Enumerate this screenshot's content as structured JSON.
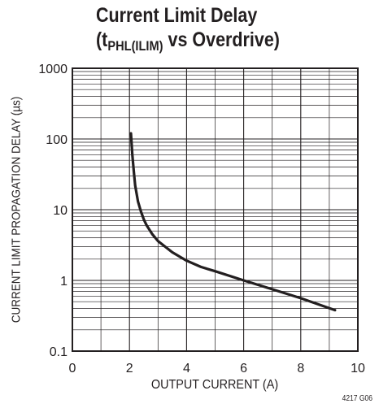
{
  "title": {
    "line1": "Current Limit Delay",
    "line2_open": "(t",
    "line2_sub": "PHL(ILIM)",
    "line2_rest": " vs Overdrive)"
  },
  "figure_code": "4217 G06",
  "colors": {
    "ink": "#231f20",
    "background": "#ffffff"
  },
  "chart_data": {
    "type": "line",
    "title": "Current Limit Delay (tPHL(ILIM) vs Overdrive)",
    "xlabel": "OUTPUT CURRENT (A)",
    "ylabel": "CURRENT LIMIT PROPAGATION DELAY (µs)",
    "xlim": [
      0,
      10
    ],
    "ylim": [
      0.1,
      1000
    ],
    "yscale": "log",
    "grid": true,
    "x_ticks": [
      "0",
      "2",
      "4",
      "6",
      "8",
      "10"
    ],
    "y_ticks": [
      "0.1",
      "1",
      "10",
      "100",
      "1000"
    ],
    "series": [
      {
        "x": [
          2.05,
          2.1,
          2.15,
          2.2,
          2.3,
          2.4,
          2.5,
          2.6,
          2.8,
          3.0,
          3.5,
          4.0,
          4.5,
          5.0,
          6.0,
          7.0,
          8.0,
          9.2
        ],
        "y": [
          120,
          60,
          35,
          22,
          13,
          9.5,
          7.3,
          6.0,
          4.5,
          3.6,
          2.5,
          1.9,
          1.55,
          1.35,
          1.0,
          0.75,
          0.56,
          0.38
        ]
      }
    ]
  }
}
